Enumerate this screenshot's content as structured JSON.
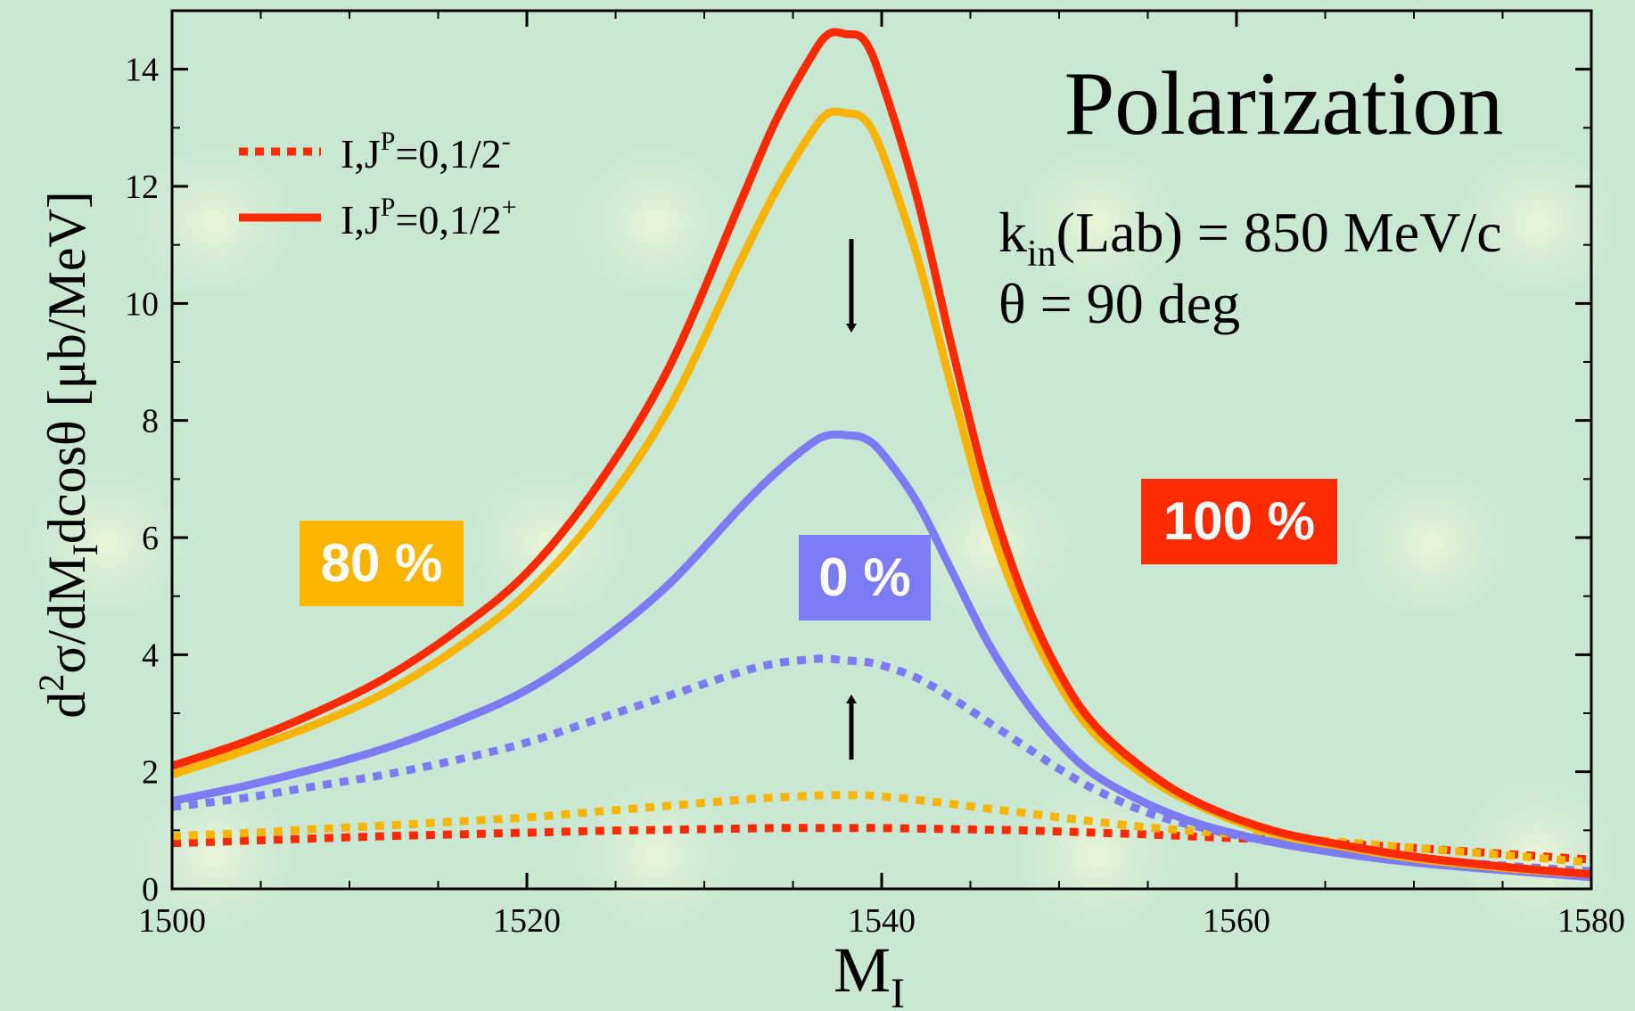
{
  "chart_data": {
    "type": "line",
    "title": "Polarization",
    "xlabel": "M_I",
    "ylabel": "d^2σ/dM_I dcosθ [μb/MeV]",
    "xlim": [
      1500,
      1580
    ],
    "ylim": [
      0,
      15
    ],
    "xticks": [
      "1500",
      "1520",
      "1540",
      "1560",
      "1580"
    ],
    "yticks": [
      "0",
      "2",
      "4",
      "6",
      "8",
      "10",
      "12",
      "14"
    ],
    "annotations": {
      "kin_main": "k",
      "kin_sub": "in",
      "kin_rest": "(Lab) = 850 MeV/c",
      "theta": "θ = 90 deg"
    },
    "legend": {
      "placement": "top-left",
      "entries": [
        {
          "style": "dotted",
          "prefix": "I,J",
          "sup1": "P",
          "text": "=0,1/2",
          "sup2": "-"
        },
        {
          "style": "solid",
          "prefix": "I,J",
          "sup1": "P",
          "text": "=0,1/2",
          "sup2": "+"
        }
      ]
    },
    "polarization_labels": [
      {
        "text": "80 %",
        "color": "#f9b400"
      },
      {
        "text": "0 %",
        "color": "#7b7bf4"
      },
      {
        "text": "100 %",
        "color": "#ff2a00"
      }
    ],
    "x": [
      1500,
      1504,
      1508,
      1512,
      1516,
      1520,
      1524,
      1528,
      1532,
      1534,
      1536,
      1537,
      1538,
      1539,
      1540,
      1542,
      1544,
      1546,
      1548,
      1550,
      1552,
      1555,
      1558,
      1562,
      1566,
      1570,
      1575,
      1580
    ],
    "series": [
      {
        "name": "100 % (1/2+)",
        "style": "solid",
        "color": "#ff2a00",
        "values": [
          2.1,
          2.5,
          3.0,
          3.6,
          4.4,
          5.4,
          6.9,
          8.9,
          11.7,
          13.1,
          14.2,
          14.6,
          14.6,
          14.5,
          13.8,
          11.8,
          9.2,
          6.8,
          5.0,
          3.7,
          2.8,
          2.0,
          1.45,
          1.0,
          0.75,
          0.55,
          0.38,
          0.25
        ]
      },
      {
        "name": "80 % (1/2+)",
        "style": "solid",
        "color": "#f9b400",
        "values": [
          1.95,
          2.35,
          2.8,
          3.35,
          4.1,
          5.05,
          6.4,
          8.2,
          10.7,
          11.9,
          12.9,
          13.25,
          13.25,
          13.15,
          12.6,
          10.8,
          8.5,
          6.3,
          4.7,
          3.5,
          2.65,
          1.9,
          1.4,
          0.95,
          0.72,
          0.52,
          0.36,
          0.25
        ]
      },
      {
        "name": "0 % (1/2+)",
        "style": "solid",
        "color": "#7b7bf4",
        "values": [
          1.5,
          1.75,
          2.05,
          2.4,
          2.85,
          3.4,
          4.2,
          5.2,
          6.5,
          7.1,
          7.6,
          7.75,
          7.75,
          7.7,
          7.45,
          6.6,
          5.4,
          4.2,
          3.25,
          2.5,
          1.95,
          1.45,
          1.1,
          0.8,
          0.6,
          0.45,
          0.32,
          0.2
        ]
      },
      {
        "name": "0 % (1/2-)",
        "style": "dotted",
        "color": "#7b7bf4",
        "values": [
          1.4,
          1.55,
          1.75,
          1.95,
          2.2,
          2.5,
          2.9,
          3.3,
          3.7,
          3.85,
          3.92,
          3.93,
          3.9,
          3.88,
          3.82,
          3.6,
          3.25,
          2.85,
          2.45,
          2.05,
          1.7,
          1.3,
          1.05,
          0.8,
          0.65,
          0.52,
          0.4,
          0.3
        ]
      },
      {
        "name": "80 % (1/2-)",
        "style": "dotted",
        "color": "#f9b400",
        "values": [
          0.9,
          0.95,
          1.02,
          1.08,
          1.15,
          1.22,
          1.32,
          1.42,
          1.52,
          1.56,
          1.59,
          1.6,
          1.6,
          1.6,
          1.58,
          1.52,
          1.45,
          1.37,
          1.3,
          1.22,
          1.15,
          1.05,
          0.98,
          0.88,
          0.8,
          0.7,
          0.58,
          0.45
        ]
      },
      {
        "name": "100 % (1/2-)",
        "style": "dotted",
        "color": "#ff2a00",
        "values": [
          0.78,
          0.82,
          0.86,
          0.9,
          0.93,
          0.96,
          0.99,
          1.01,
          1.03,
          1.04,
          1.04,
          1.04,
          1.04,
          1.04,
          1.04,
          1.03,
          1.02,
          1.01,
          1.0,
          0.98,
          0.96,
          0.93,
          0.89,
          0.84,
          0.77,
          0.7,
          0.6,
          0.5
        ]
      }
    ]
  }
}
